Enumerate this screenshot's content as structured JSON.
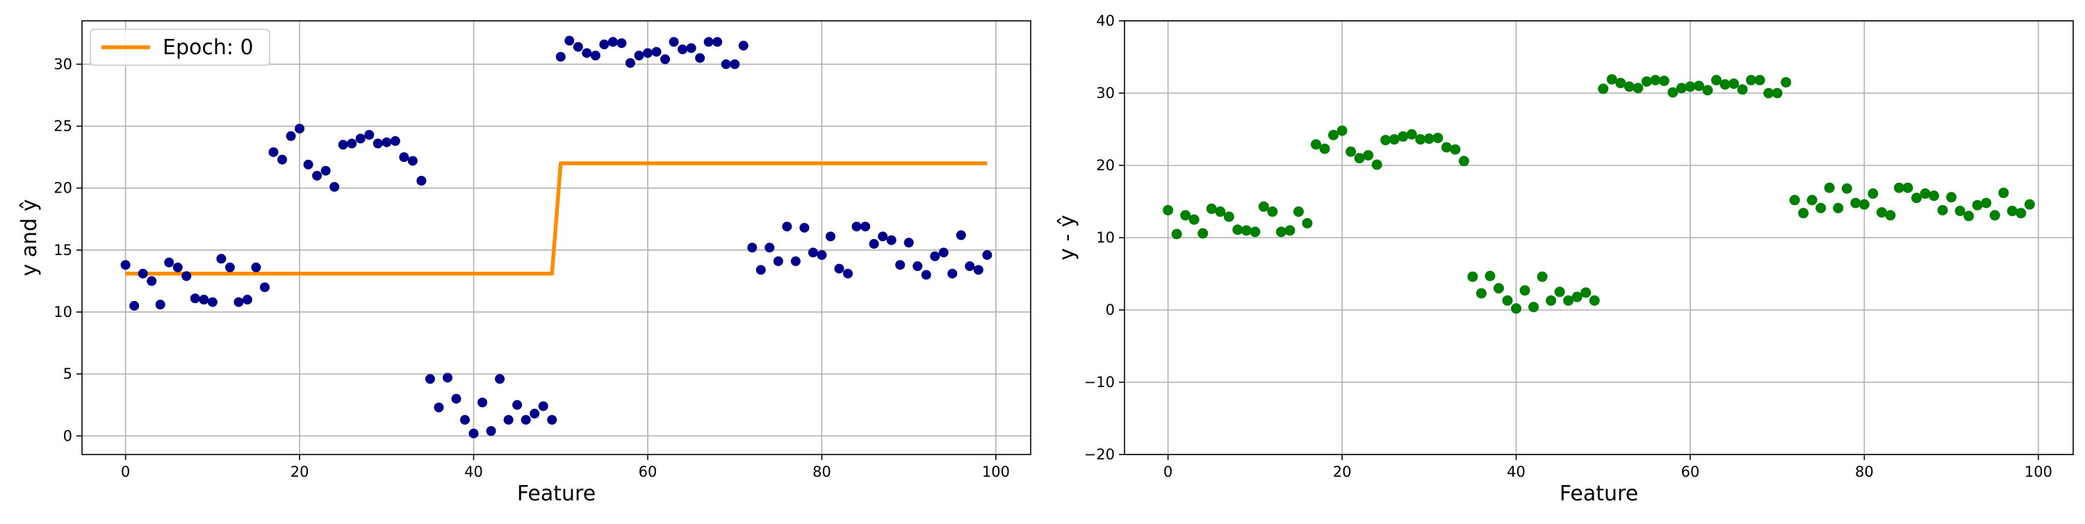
{
  "chart_data": [
    {
      "type": "scatter",
      "xlabel": "Feature",
      "ylabel": "y and ŷ",
      "xlim": [
        -5,
        104
      ],
      "ylim": [
        -1.5,
        33.5
      ],
      "xticks": [
        0,
        20,
        40,
        60,
        80,
        100
      ],
      "yticks": [
        0,
        5,
        10,
        15,
        20,
        25,
        30
      ],
      "grid": true,
      "legend": {
        "position": "top-left",
        "entries": [
          "Epoch: 0"
        ]
      },
      "colors": {
        "points": "#00008b",
        "line": "#ff8c00"
      },
      "points": [
        [
          0,
          13.8
        ],
        [
          1,
          10.5
        ],
        [
          2,
          13.1
        ],
        [
          3,
          12.5
        ],
        [
          4,
          10.6
        ],
        [
          5,
          14.0
        ],
        [
          6,
          13.6
        ],
        [
          7,
          12.9
        ],
        [
          8,
          11.1
        ],
        [
          9,
          11.0
        ],
        [
          10,
          10.8
        ],
        [
          11,
          14.3
        ],
        [
          12,
          13.6
        ],
        [
          13,
          10.8
        ],
        [
          14,
          11.0
        ],
        [
          15,
          13.6
        ],
        [
          16,
          12.0
        ],
        [
          17,
          22.9
        ],
        [
          18,
          22.3
        ],
        [
          19,
          24.2
        ],
        [
          20,
          24.8
        ],
        [
          21,
          21.9
        ],
        [
          22,
          21.0
        ],
        [
          23,
          21.4
        ],
        [
          24,
          20.1
        ],
        [
          25,
          23.5
        ],
        [
          26,
          23.6
        ],
        [
          27,
          24.0
        ],
        [
          28,
          24.3
        ],
        [
          29,
          23.6
        ],
        [
          30,
          23.7
        ],
        [
          31,
          23.8
        ],
        [
          32,
          22.5
        ],
        [
          33,
          22.2
        ],
        [
          34,
          20.6
        ],
        [
          35,
          4.6
        ],
        [
          36,
          2.3
        ],
        [
          37,
          4.7
        ],
        [
          38,
          3.0
        ],
        [
          39,
          1.3
        ],
        [
          40,
          0.2
        ],
        [
          41,
          2.7
        ],
        [
          42,
          0.4
        ],
        [
          43,
          4.6
        ],
        [
          44,
          1.3
        ],
        [
          45,
          2.5
        ],
        [
          46,
          1.3
        ],
        [
          47,
          1.8
        ],
        [
          48,
          2.4
        ],
        [
          49,
          1.3
        ],
        [
          50,
          30.6
        ],
        [
          51,
          31.9
        ],
        [
          52,
          31.4
        ],
        [
          53,
          30.9
        ],
        [
          54,
          30.7
        ],
        [
          55,
          31.6
        ],
        [
          56,
          31.8
        ],
        [
          57,
          31.7
        ],
        [
          58,
          30.1
        ],
        [
          59,
          30.7
        ],
        [
          60,
          30.9
        ],
        [
          61,
          31.0
        ],
        [
          62,
          30.4
        ],
        [
          63,
          31.8
        ],
        [
          64,
          31.2
        ],
        [
          65,
          31.3
        ],
        [
          66,
          30.5
        ],
        [
          67,
          31.8
        ],
        [
          68,
          31.8
        ],
        [
          69,
          30.0
        ],
        [
          70,
          30.0
        ],
        [
          71,
          31.5
        ],
        [
          72,
          15.2
        ],
        [
          73,
          13.4
        ],
        [
          74,
          15.2
        ],
        [
          75,
          14.1
        ],
        [
          76,
          16.9
        ],
        [
          77,
          14.1
        ],
        [
          78,
          16.8
        ],
        [
          79,
          14.8
        ],
        [
          80,
          14.6
        ],
        [
          81,
          16.1
        ],
        [
          82,
          13.5
        ],
        [
          83,
          13.1
        ],
        [
          84,
          16.9
        ],
        [
          85,
          16.9
        ],
        [
          86,
          15.5
        ],
        [
          87,
          16.1
        ],
        [
          88,
          15.8
        ],
        [
          89,
          13.8
        ],
        [
          90,
          15.6
        ],
        [
          91,
          13.7
        ],
        [
          92,
          13.0
        ],
        [
          93,
          14.5
        ],
        [
          94,
          14.8
        ],
        [
          95,
          13.1
        ],
        [
          96,
          16.2
        ],
        [
          97,
          13.7
        ],
        [
          98,
          13.4
        ],
        [
          99,
          14.6
        ]
      ],
      "line": {
        "name": "Epoch: 0",
        "x": [
          0,
          49,
          50,
          99
        ],
        "y": [
          13.1,
          13.1,
          22.0,
          22.0
        ]
      }
    },
    {
      "type": "scatter",
      "xlabel": "Feature",
      "ylabel": "y - ŷ",
      "xlim": [
        -5,
        104
      ],
      "ylim": [
        -20,
        40
      ],
      "xticks": [
        0,
        20,
        40,
        60,
        80,
        100
      ],
      "yticks": [
        -20,
        -10,
        0,
        10,
        20,
        30,
        40
      ],
      "grid": true,
      "colors": {
        "points": "#008000"
      },
      "points": [
        [
          0,
          13.8
        ],
        [
          1,
          10.5
        ],
        [
          2,
          13.1
        ],
        [
          3,
          12.5
        ],
        [
          4,
          10.6
        ],
        [
          5,
          14.0
        ],
        [
          6,
          13.6
        ],
        [
          7,
          12.9
        ],
        [
          8,
          11.1
        ],
        [
          9,
          11.0
        ],
        [
          10,
          10.8
        ],
        [
          11,
          14.3
        ],
        [
          12,
          13.6
        ],
        [
          13,
          10.8
        ],
        [
          14,
          11.0
        ],
        [
          15,
          13.6
        ],
        [
          16,
          12.0
        ],
        [
          17,
          22.9
        ],
        [
          18,
          22.3
        ],
        [
          19,
          24.2
        ],
        [
          20,
          24.8
        ],
        [
          21,
          21.9
        ],
        [
          22,
          21.0
        ],
        [
          23,
          21.4
        ],
        [
          24,
          20.1
        ],
        [
          25,
          23.5
        ],
        [
          26,
          23.6
        ],
        [
          27,
          24.0
        ],
        [
          28,
          24.3
        ],
        [
          29,
          23.6
        ],
        [
          30,
          23.7
        ],
        [
          31,
          23.8
        ],
        [
          32,
          22.5
        ],
        [
          33,
          22.2
        ],
        [
          34,
          20.6
        ],
        [
          35,
          4.6
        ],
        [
          36,
          2.3
        ],
        [
          37,
          4.7
        ],
        [
          38,
          3.0
        ],
        [
          39,
          1.3
        ],
        [
          40,
          0.2
        ],
        [
          41,
          2.7
        ],
        [
          42,
          0.4
        ],
        [
          43,
          4.6
        ],
        [
          44,
          1.3
        ],
        [
          45,
          2.5
        ],
        [
          46,
          1.3
        ],
        [
          47,
          1.8
        ],
        [
          48,
          2.4
        ],
        [
          49,
          1.3
        ],
        [
          50,
          30.6
        ],
        [
          51,
          31.9
        ],
        [
          52,
          31.4
        ],
        [
          53,
          30.9
        ],
        [
          54,
          30.7
        ],
        [
          55,
          31.6
        ],
        [
          56,
          31.8
        ],
        [
          57,
          31.7
        ],
        [
          58,
          30.1
        ],
        [
          59,
          30.7
        ],
        [
          60,
          30.9
        ],
        [
          61,
          31.0
        ],
        [
          62,
          30.4
        ],
        [
          63,
          31.8
        ],
        [
          64,
          31.2
        ],
        [
          65,
          31.3
        ],
        [
          66,
          30.5
        ],
        [
          67,
          31.8
        ],
        [
          68,
          31.8
        ],
        [
          69,
          30.0
        ],
        [
          70,
          30.0
        ],
        [
          71,
          31.5
        ],
        [
          72,
          15.2
        ],
        [
          73,
          13.4
        ],
        [
          74,
          15.2
        ],
        [
          75,
          14.1
        ],
        [
          76,
          16.9
        ],
        [
          77,
          14.1
        ],
        [
          78,
          16.8
        ],
        [
          79,
          14.8
        ],
        [
          80,
          14.6
        ],
        [
          81,
          16.1
        ],
        [
          82,
          13.5
        ],
        [
          83,
          13.1
        ],
        [
          84,
          16.9
        ],
        [
          85,
          16.9
        ],
        [
          86,
          15.5
        ],
        [
          87,
          16.1
        ],
        [
          88,
          15.8
        ],
        [
          89,
          13.8
        ],
        [
          90,
          15.6
        ],
        [
          91,
          13.7
        ],
        [
          92,
          13.0
        ],
        [
          93,
          14.5
        ],
        [
          94,
          14.8
        ],
        [
          95,
          13.1
        ],
        [
          96,
          16.2
        ],
        [
          97,
          13.7
        ],
        [
          98,
          13.4
        ],
        [
          99,
          14.6
        ]
      ]
    }
  ]
}
